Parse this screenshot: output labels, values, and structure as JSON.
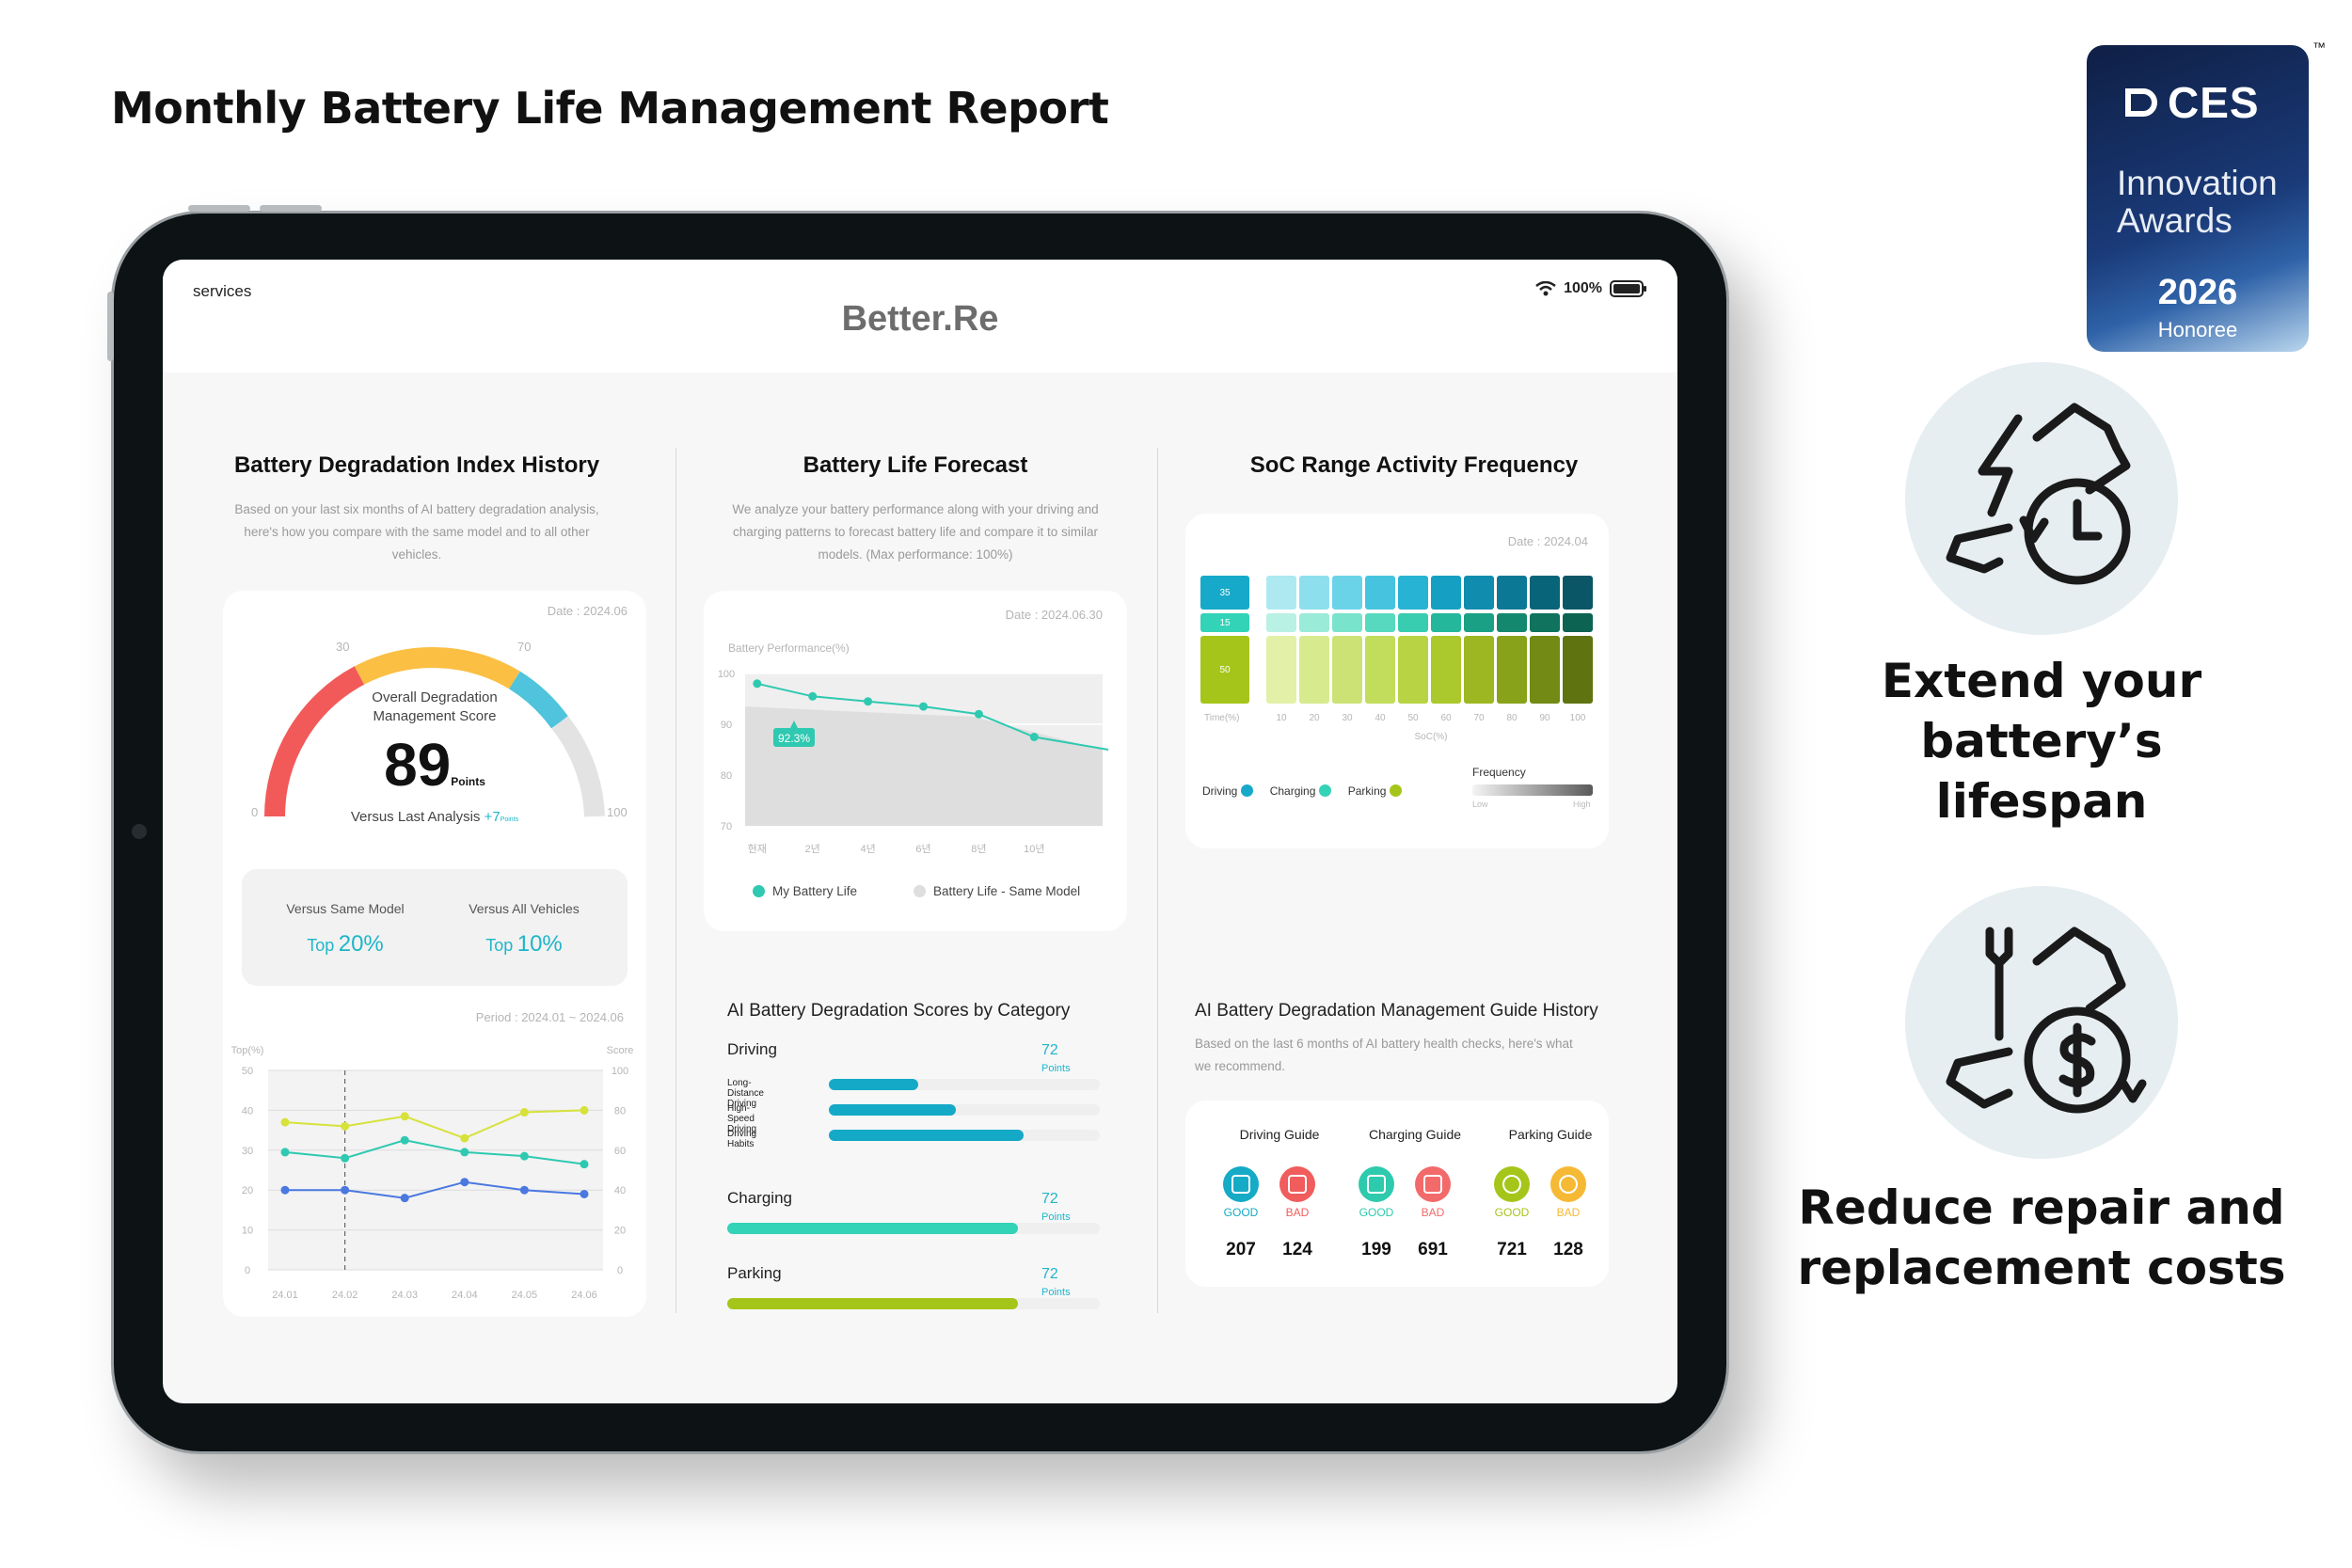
{
  "page_title": "Monthly Battery Life Management Report",
  "badge": {
    "brand": "CES",
    "line1": "Innovation",
    "line2": "Awards",
    "year": "2026",
    "honoree": "Honoree",
    "tm": "™"
  },
  "features": [
    {
      "title_line1": "Extend your",
      "title_line2": "battery’s lifespan",
      "icon": "battery-clock-icon"
    },
    {
      "title_line1": "Reduce repair and",
      "title_line2": "replacement costs",
      "icon": "battery-wrench-dollar-icon"
    }
  ],
  "app": {
    "services": "services",
    "brand": "Better.Re",
    "battery_pct": "100%"
  },
  "degradation": {
    "title": "Battery Degradation Index History",
    "desc_l1": "Based on your last six months of AI battery degradation analysis,",
    "desc_l2": "here's how you compare with the same model and to all other",
    "desc_l3": "vehicles.",
    "date": "Date : 2024.06",
    "gauge": {
      "label_l1": "Overall Degradation",
      "label_l2": "Management Score",
      "score": "89",
      "score_unit": "Points",
      "t0": "0",
      "t30": "30",
      "t70": "70",
      "t100": "100",
      "versus_label": "Versus Last Analysis",
      "versus_value": "+7",
      "versus_unit": "Points",
      "score_value": 89
    },
    "compare": {
      "same_label": "Versus Same Model",
      "same_prefix": "Top",
      "same_value": "20%",
      "all_label": "Versus All Vehicles",
      "all_prefix": "Top",
      "all_value": "10%"
    },
    "period": "Period : 2024.01 ~ 2024.06",
    "history_chart": {
      "left_axis_label": "Top(%)",
      "right_axis_label": "Score",
      "left_ticks": [
        "50",
        "40",
        "30",
        "20",
        "10",
        "0"
      ],
      "right_ticks": [
        "100",
        "80",
        "60",
        "40",
        "20",
        "0"
      ],
      "x": [
        "24.01",
        "24.02",
        "24.03",
        "24.04",
        "24.05",
        "24.06"
      ],
      "series": [
        {
          "color": "#d6e23a",
          "values": [
            37,
            36,
            38.5,
            33,
            39.5,
            40
          ]
        },
        {
          "color": "#2ec9b0",
          "values": [
            29.5,
            28,
            32.5,
            29.5,
            28.5,
            26.5
          ]
        },
        {
          "color": "#4a78e0",
          "values": [
            20,
            20,
            18,
            22,
            20,
            19
          ]
        }
      ]
    }
  },
  "forecast": {
    "title": "Battery Life Forecast",
    "desc_l1": "We analyze your battery performance along with your driving and",
    "desc_l2": "charging patterns to forecast battery life and compare it to similar",
    "desc_l3": "models. (Max performance: 100%)",
    "date": "Date : 2024.06.30",
    "ylabel": "Battery Performance(%)",
    "y_ticks": [
      "100",
      "90",
      "80",
      "70"
    ],
    "x": [
      "현재",
      "2년",
      "4년",
      "6년",
      "8년",
      "10년"
    ],
    "callout": "92.3%",
    "legend_mine": "My Battery Life",
    "legend_same": "Battery Life - Same Model",
    "chart_data": {
      "type": "line",
      "ylim": [
        70,
        100
      ],
      "series": [
        {
          "name": "My Battery Life",
          "values": [
            98,
            95.5,
            94.5,
            93.5,
            92,
            87.5
          ],
          "color": "#2ec9b0"
        },
        {
          "name": "Battery Life - Same Model",
          "values": [
            93.5,
            93,
            92.5,
            92,
            91.5,
            85
          ],
          "color": "#dcdcdc"
        }
      ]
    }
  },
  "soc": {
    "title": "SoC Range Activity Frequency",
    "date": "Date : 2024.04",
    "row_labels": [
      "35",
      "15",
      "50"
    ],
    "x_label_head": "Time(%)",
    "x_ticks": [
      "10",
      "20",
      "30",
      "40",
      "50",
      "60",
      "70",
      "80",
      "90",
      "100"
    ],
    "x_axis_label": "SoC(%)",
    "legend_driving": "Driving",
    "legend_charging": "Charging",
    "legend_parking": "Parking",
    "freq_label": "Frequency",
    "freq_low": "Low",
    "freq_high": "High",
    "colors": {
      "driving": [
        "#aee9f2",
        "#8edfee",
        "#6bd3e8",
        "#46c4df",
        "#27b3d3",
        "#15a0c3",
        "#0f8cae",
        "#0b7896",
        "#086479",
        "#0a5667"
      ],
      "charging": [
        "#b9f1e4",
        "#9aebd8",
        "#7ae3cc",
        "#57d9bf",
        "#38ccb0",
        "#24b79b",
        "#1aa085",
        "#13886f",
        "#0f735e",
        "#0c6351"
      ],
      "parking": [
        "#e3f0a8",
        "#d8ea8e",
        "#cce275",
        "#c2dc5c",
        "#b8d444",
        "#abc82c",
        "#9cb721",
        "#88a21a",
        "#738a14",
        "#5f7410"
      ]
    }
  },
  "categories": {
    "title": "AI Battery Degradation Scores by Category",
    "items": [
      {
        "label": "Driving",
        "points": "72",
        "unit": "Points"
      },
      {
        "label": "Charging",
        "points": "72",
        "unit": "Points"
      },
      {
        "label": "Parking",
        "points": "72",
        "unit": "Points"
      }
    ],
    "driving_sub": [
      "Long-Distance Driving",
      "High-Speed Driving",
      "Driving Habits"
    ],
    "driving_sub_values": [
      0.33,
      0.47,
      0.72
    ],
    "charging_value": 0.78,
    "parking_value": 0.78
  },
  "guide": {
    "title": "AI Battery Degradation Management Guide History",
    "desc_l1": "Based on the last 6 months of AI battery health checks, here's what",
    "desc_l2": "we recommend.",
    "cols": [
      {
        "title": "Driving Guide",
        "good": "GOOD",
        "bad": "BAD",
        "good_n": "207",
        "bad_n": "124"
      },
      {
        "title": "Charging Guide",
        "good": "GOOD",
        "bad": "BAD",
        "good_n": "199",
        "bad_n": "691"
      },
      {
        "title": "Parking Guide",
        "good": "GOOD",
        "bad": "BAD",
        "good_n": "721",
        "bad_n": "128"
      }
    ]
  }
}
